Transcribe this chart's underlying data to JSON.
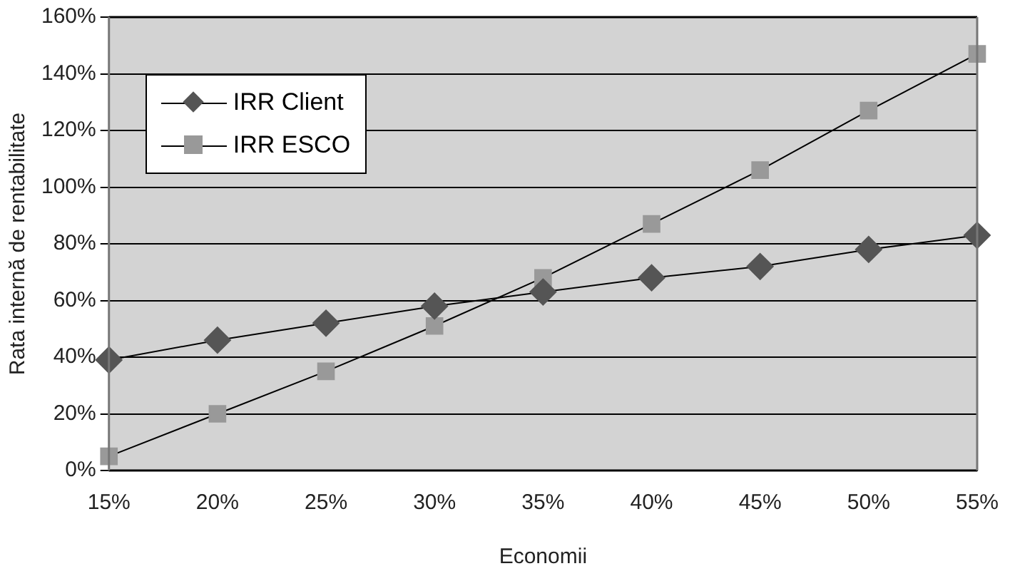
{
  "chart_data": {
    "type": "line",
    "xlabel": "Economii",
    "ylabel": "Rata internă de rentabilitate",
    "x": [
      15,
      20,
      25,
      30,
      35,
      40,
      45,
      50,
      55
    ],
    "series": [
      {
        "name": "IRR Client",
        "color": "#555555",
        "marker": "diamond",
        "values": [
          39,
          46,
          52,
          58,
          63,
          68,
          72,
          78,
          83
        ]
      },
      {
        "name": "IRR ESCO",
        "color": "#999999",
        "marker": "square",
        "values": [
          5,
          20,
          35,
          51,
          68,
          87,
          106,
          127,
          147
        ]
      }
    ],
    "xlim": [
      15,
      55
    ],
    "xticks": [
      {
        "value": 15,
        "label": "15%"
      },
      {
        "value": 20,
        "label": "20%"
      },
      {
        "value": 25,
        "label": "25%"
      },
      {
        "value": 30,
        "label": "30%"
      },
      {
        "value": 35,
        "label": "35%"
      },
      {
        "value": 40,
        "label": "40%"
      },
      {
        "value": 45,
        "label": "45%"
      },
      {
        "value": 50,
        "label": "50%"
      },
      {
        "value": 55,
        "label": "55%"
      }
    ],
    "ylim": [
      0,
      160
    ],
    "yticks": [
      {
        "value": 0,
        "label": "0%"
      },
      {
        "value": 20,
        "label": "20%"
      },
      {
        "value": 40,
        "label": "40%"
      },
      {
        "value": 60,
        "label": "60%"
      },
      {
        "value": 80,
        "label": "80%"
      },
      {
        "value": 100,
        "label": "100%"
      },
      {
        "value": 120,
        "label": "120%"
      },
      {
        "value": 140,
        "label": "140%"
      },
      {
        "value": 160,
        "label": "160%"
      }
    ],
    "grid": "y",
    "legend": "top left",
    "line_style": "solid"
  }
}
